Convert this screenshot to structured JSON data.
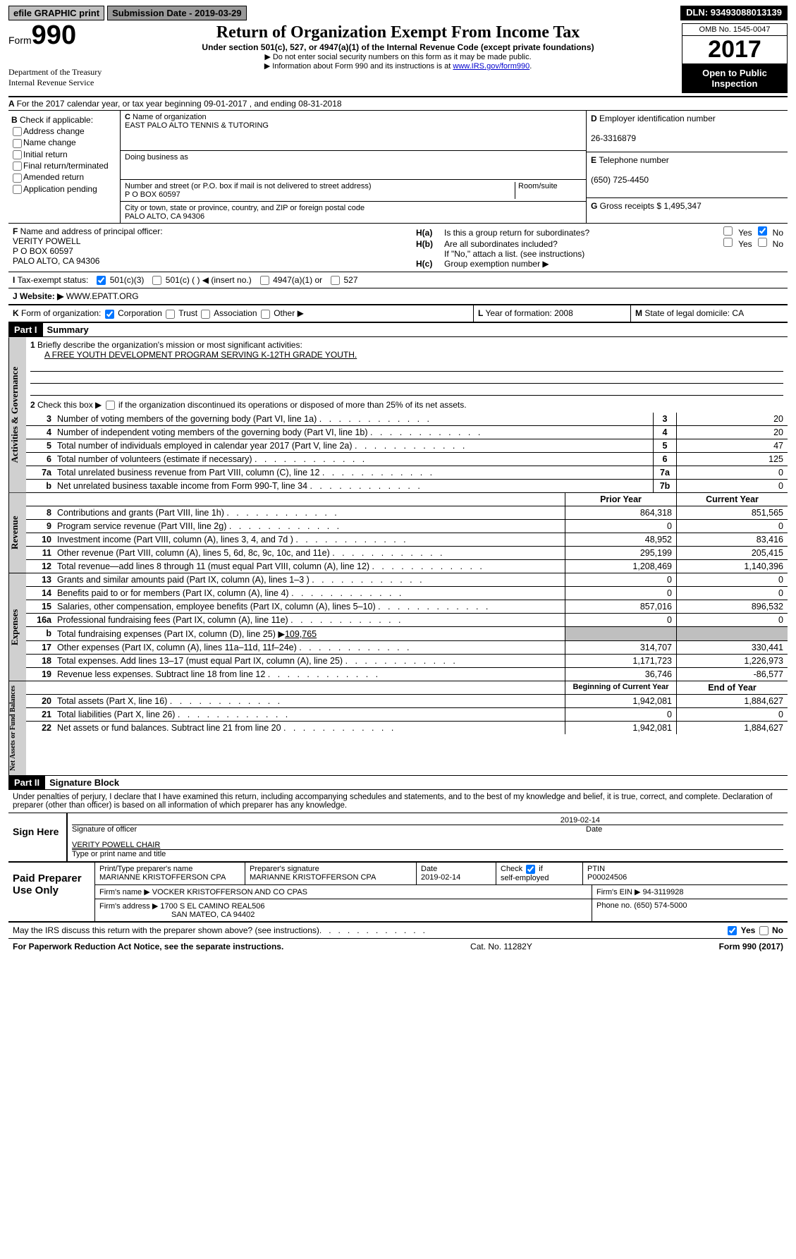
{
  "topbar": {
    "efile": "efile GRAPHIC print",
    "sub_label": "Submission Date - ",
    "sub_date": "2019-03-29",
    "dln_label": "DLN: ",
    "dln": "93493088013139"
  },
  "header": {
    "form_word": "Form",
    "form_num": "990",
    "dept1": "Department of the Treasury",
    "dept2": "Internal Revenue Service",
    "title": "Return of Organization Exempt From Income Tax",
    "sub": "Under section 501(c), 527, or 4947(a)(1) of the Internal Revenue Code (except private foundations)",
    "n1": "▶ Do not enter social security numbers on this form as it may be made public.",
    "n2a": "▶ Information about Form 990 and its instructions is at ",
    "n2_link": "www.IRS.gov/form990",
    "omb": "OMB No. 1545-0047",
    "year": "2017",
    "inspect": "Open to Public Inspection"
  },
  "A": {
    "text": "For the 2017 calendar year, or tax year beginning 09-01-2017   , and ending 08-31-2018"
  },
  "B": {
    "title": "Check if applicable:",
    "opts": [
      "Address change",
      "Name change",
      "Initial return",
      "Final return/terminated",
      "Amended return",
      "Application pending"
    ]
  },
  "C": {
    "l1": "Name of organization",
    "org": "EAST PALO ALTO TENNIS & TUTORING",
    "l2": "Doing business as",
    "dba": "",
    "l3": "Number and street (or P.O. box if mail is not delivered to street address)",
    "room": "Room/suite",
    "addr": "P O BOX 60597",
    "l4": "City or town, state or province, country, and ZIP or foreign postal code",
    "city": "PALO ALTO, CA  94306"
  },
  "D": {
    "l": "Employer identification number",
    "v": "26-3316879"
  },
  "E": {
    "l": "Telephone number",
    "v": "(650) 725-4450"
  },
  "G": {
    "l": "Gross receipts $ ",
    "v": "1,495,347"
  },
  "F": {
    "l": "Name and address of principal officer:",
    "n": "VERITY POWELL",
    "a1": "P O BOX 60597",
    "a2": "PALO ALTO, CA  94306"
  },
  "H": {
    "a": "Is this a group return for subordinates?",
    "b": "Are all subordinates included?",
    "note": "If \"No,\" attach a list. (see instructions)",
    "c": "Group exemption number ▶",
    "yes": "Yes",
    "no": "No"
  },
  "I": {
    "l": "Tax-exempt status:",
    "o1": "501(c)(3)",
    "o2": "501(c) (   ) ◀ (insert no.)",
    "o3": "4947(a)(1) or",
    "o4": "527"
  },
  "J": {
    "l": "Website: ▶",
    "v": "WWW.EPATT.ORG"
  },
  "K": {
    "l": "Form of organization:",
    "o": [
      "Corporation",
      "Trust",
      "Association",
      "Other ▶"
    ]
  },
  "L": {
    "l": "Year of formation: ",
    "v": "2008"
  },
  "M": {
    "l": "State of legal domicile: ",
    "v": "CA"
  },
  "parts": {
    "p1": "Part I",
    "p1t": "Summary",
    "p2": "Part II",
    "p2t": "Signature Block"
  },
  "tabs": {
    "ag": "Activities & Governance",
    "rev": "Revenue",
    "exp": "Expenses",
    "na": "Net Assets or Fund Balances"
  },
  "p1": {
    "l1": "Briefly describe the organization's mission or most significant activities:",
    "mission": "A FREE YOUTH DEVELOPMENT PROGRAM SERVING K-12TH GRADE YOUTH.",
    "l2": "Check this box ▶",
    "l2b": "if the organization discontinued its operations or disposed of more than 25% of its net assets.",
    "rows_ag": [
      {
        "n": "3",
        "t": "Number of voting members of the governing body (Part VI, line 1a)",
        "b": "3",
        "v": "20"
      },
      {
        "n": "4",
        "t": "Number of independent voting members of the governing body (Part VI, line 1b)",
        "b": "4",
        "v": "20"
      },
      {
        "n": "5",
        "t": "Total number of individuals employed in calendar year 2017 (Part V, line 2a)",
        "b": "5",
        "v": "47"
      },
      {
        "n": "6",
        "t": "Total number of volunteers (estimate if necessary)",
        "b": "6",
        "v": "125"
      },
      {
        "n": "7a",
        "t": "Total unrelated business revenue from Part VIII, column (C), line 12",
        "b": "7a",
        "v": "0"
      },
      {
        "n": "b",
        "t": "Net unrelated business taxable income from Form 990-T, line 34",
        "b": "7b",
        "v": "0"
      }
    ],
    "hdr": {
      "py": "Prior Year",
      "cy": "Current Year",
      "bcy": "Beginning of Current Year",
      "eoy": "End of Year"
    },
    "rows_rev": [
      {
        "n": "8",
        "t": "Contributions and grants (Part VIII, line 1h)",
        "p": "864,318",
        "c": "851,565"
      },
      {
        "n": "9",
        "t": "Program service revenue (Part VIII, line 2g)",
        "p": "0",
        "c": "0"
      },
      {
        "n": "10",
        "t": "Investment income (Part VIII, column (A), lines 3, 4, and 7d )",
        "p": "48,952",
        "c": "83,416"
      },
      {
        "n": "11",
        "t": "Other revenue (Part VIII, column (A), lines 5, 6d, 8c, 9c, 10c, and 11e)",
        "p": "295,199",
        "c": "205,415"
      },
      {
        "n": "12",
        "t": "Total revenue—add lines 8 through 11 (must equal Part VIII, column (A), line 12)",
        "p": "1,208,469",
        "c": "1,140,396"
      }
    ],
    "rows_exp": [
      {
        "n": "13",
        "t": "Grants and similar amounts paid (Part IX, column (A), lines 1–3 )",
        "p": "0",
        "c": "0"
      },
      {
        "n": "14",
        "t": "Benefits paid to or for members (Part IX, column (A), line 4)",
        "p": "0",
        "c": "0"
      },
      {
        "n": "15",
        "t": "Salaries, other compensation, employee benefits (Part IX, column (A), lines 5–10)",
        "p": "857,016",
        "c": "896,532"
      },
      {
        "n": "16a",
        "t": "Professional fundraising fees (Part IX, column (A), line 11e)",
        "p": "0",
        "c": "0"
      },
      {
        "n": "b",
        "t": "Total fundraising expenses (Part IX, column (D), line 25) ▶",
        "u": "109,765",
        "gray": true
      },
      {
        "n": "17",
        "t": "Other expenses (Part IX, column (A), lines 11a–11d, 11f–24e)",
        "p": "314,707",
        "c": "330,441"
      },
      {
        "n": "18",
        "t": "Total expenses. Add lines 13–17 (must equal Part IX, column (A), line 25)",
        "p": "1,171,723",
        "c": "1,226,973"
      },
      {
        "n": "19",
        "t": "Revenue less expenses. Subtract line 18 from line 12",
        "p": "36,746",
        "c": "-86,577"
      }
    ],
    "rows_na": [
      {
        "n": "20",
        "t": "Total assets (Part X, line 16)",
        "p": "1,942,081",
        "c": "1,884,627"
      },
      {
        "n": "21",
        "t": "Total liabilities (Part X, line 26)",
        "p": "0",
        "c": "0"
      },
      {
        "n": "22",
        "t": "Net assets or fund balances. Subtract line 21 from line 20",
        "p": "1,942,081",
        "c": "1,884,627"
      }
    ]
  },
  "p2": {
    "decl": "Under penalties of perjury, I declare that I have examined this return, including accompanying schedules and statements, and to the best of my knowledge and belief, it is true, correct, and complete. Declaration of preparer (other than officer) is based on all information of which preparer has any knowledge.",
    "sign_here": "Sign Here",
    "sig_l": "Signature of officer",
    "date_l": "Date",
    "sig_date": "2019-02-14",
    "name": "VERITY POWELL  CHAIR",
    "name_l": "Type or print name and title",
    "paid": "Paid Preparer Use Only",
    "pp_name_l": "Print/Type preparer's name",
    "pp_name": "MARIANNE KRISTOFFERSON CPA",
    "pp_sig_l": "Preparer's signature",
    "pp_sig": "MARIANNE KRISTOFFERSON CPA",
    "pp_date_l": "Date",
    "pp_date": "2019-02-14",
    "pp_check": "Check          if self-employed",
    "ptin_l": "PTIN",
    "ptin": "P00024506",
    "firm_l": "Firm's name    ▶",
    "firm": "VOCKER KRISTOFFERSON AND CO CPAS",
    "ein_l": "Firm's EIN ▶ ",
    "ein": "94-3119928",
    "addr_l": "Firm's address ▶",
    "addr1": "1700 S EL CAMINO REAL506",
    "addr2": "SAN MATEO, CA  94402",
    "ph_l": "Phone no. ",
    "ph": "(650) 574-5000",
    "discuss": "May the IRS discuss this return with the preparer shown above? (see instructions)",
    "yes": "Yes",
    "no": "No"
  },
  "footer": {
    "pra": "For Paperwork Reduction Act Notice, see the separate instructions.",
    "cat": "Cat. No. 11282Y",
    "form": "Form 990 (2017)"
  }
}
